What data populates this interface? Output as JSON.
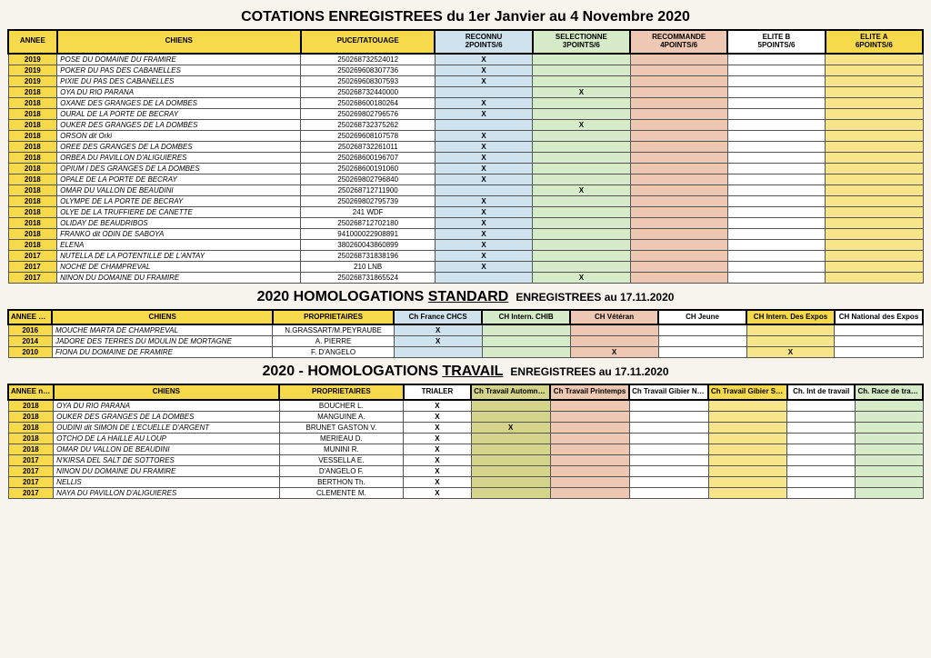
{
  "titles": {
    "t1": "COTATIONS ENREGISTREES du 1er Janvier au 4 Novembre 2020",
    "t2a": "2020 HOMOLOGATIONS ",
    "t2b": "STANDARD",
    "t2c": "ENREGISTREES  au 17.11.2020",
    "t3a": "2020 - HOMOLOGATIONS ",
    "t3b": "TRAVAIL",
    "t3c": "ENREGISTREES  au 17.11.2020"
  },
  "cotation": {
    "headers": [
      "ANNEE",
      "CHIENS",
      "PUCE/TATOUAGE",
      "RECONNU 2POINTS/6",
      "SELECTIONNE 3POINTS/6",
      "RECOMMANDE 4POINTS/6",
      "ELITE B 5POINTS/6",
      "ELITE A 6POINTS/6"
    ],
    "rows": [
      {
        "star": true,
        "y": "2019",
        "d": "POSE DU DOMAINE DU FRAMIRE",
        "p": "250268732524012",
        "m": [
          1,
          0,
          0,
          0,
          0
        ]
      },
      {
        "y": "2019",
        "d": "POKER DU PAS DES CABANELLES",
        "p": "250269608307736",
        "m": [
          1,
          0,
          0,
          0,
          0
        ]
      },
      {
        "y": "2019",
        "d": "PIXIE DU PAS DES CABANELLES",
        "p": "250269608307593",
        "m": [
          1,
          0,
          0,
          0,
          0
        ]
      },
      {
        "y": "2018",
        "d": "OYA DU RIO PARANA",
        "p": "250268732440000",
        "m": [
          0,
          1,
          0,
          0,
          0
        ]
      },
      {
        "y": "2018",
        "d": "OXANE DES GRANGES DE LA DOMBES",
        "p": "250268600180264",
        "m": [
          1,
          0,
          0,
          0,
          0
        ]
      },
      {
        "y": "2018",
        "d": "OURAL DE LA PORTE DE BECRAY",
        "p": "250269802796576",
        "m": [
          1,
          0,
          0,
          0,
          0
        ]
      },
      {
        "y": "2018",
        "d": "OUKER DES GRANGES DE LA DOMBES",
        "p": "250268732375262",
        "m": [
          0,
          1,
          0,
          0,
          0
        ]
      },
      {
        "y": "2018",
        "d": "ORSON dit Orki",
        "p": "250269608107578",
        "m": [
          1,
          0,
          0,
          0,
          0
        ]
      },
      {
        "y": "2018",
        "d": "OREE DES GRANGES DE LA DOMBES",
        "p": "250268732261011",
        "m": [
          1,
          0,
          0,
          0,
          0
        ]
      },
      {
        "y": "2018",
        "d": "ORBEA DU PAVILLON D'ALIGUIERES",
        "p": "250268600196707",
        "m": [
          1,
          0,
          0,
          0,
          0
        ]
      },
      {
        "y": "2018",
        "d": "OPIUM I DES GRANGES DE LA DOMBES",
        "p": "250268600191060",
        "m": [
          1,
          0,
          0,
          0,
          0
        ]
      },
      {
        "y": "2018",
        "d": "OPALE DE LA PORTE DE BECRAY",
        "p": "250269802796840",
        "m": [
          1,
          0,
          0,
          0,
          0
        ]
      },
      {
        "y": "2018",
        "d": "OMAR DU VALLON DE BEAUDINI",
        "p": "250268712711900",
        "m": [
          0,
          1,
          0,
          0,
          0
        ]
      },
      {
        "y": "2018",
        "d": "OLYMPE DE LA PORTE DE BECRAY",
        "p": "250269802795739",
        "m": [
          1,
          0,
          0,
          0,
          0
        ]
      },
      {
        "y": "2018",
        "d": "OLYE DE LA TRUFFIERE DE CANETTE",
        "p": "241 WDF",
        "m": [
          1,
          0,
          0,
          0,
          0
        ]
      },
      {
        "y": "2018",
        "d": "OLIDAY DE BEAUDRIBOS",
        "p": "250268712702180",
        "m": [
          1,
          0,
          0,
          0,
          0
        ]
      },
      {
        "y": "2018",
        "d": "FRANKO dit ODIN DE SABOYA",
        "p": "941000022908891",
        "m": [
          1,
          0,
          0,
          0,
          0
        ]
      },
      {
        "y": "2018",
        "d": "ELENA",
        "p": "380260043860899",
        "m": [
          1,
          0,
          0,
          0,
          0
        ]
      },
      {
        "y": "2017",
        "d": "NUTELLA DE LA POTENTILLE DE L'ANTAY",
        "p": "250268731838196",
        "m": [
          1,
          0,
          0,
          0,
          0
        ]
      },
      {
        "y": "2017",
        "d": "NOCHE DE CHAMPREVAL",
        "p": "210 LNB",
        "m": [
          1,
          0,
          0,
          0,
          0
        ]
      },
      {
        "star": true,
        "y": "2017",
        "d": "NINON DU DOMAINE DU FRAMIRE",
        "p": "250268731865524",
        "m": [
          0,
          1,
          0,
          0,
          0
        ]
      }
    ]
  },
  "standard": {
    "headers": [
      "ANNEE naissance",
      "CHIENS",
      "PROPRIETAIRES",
      "Ch France CHCS",
      "CH Intern. CHIB",
      "CH  Vétéran",
      "CH   Jeune",
      "CH Intern. Des Expos",
      "CH National des Expos"
    ],
    "rows": [
      {
        "y": "2016",
        "d": "MOUCHE MARTA DE CHAMPREVAL",
        "o": "N.GRASSART/M.PEYRAUBE",
        "m": [
          1,
          0,
          0,
          0,
          0,
          0
        ]
      },
      {
        "y": "2014",
        "d": "JADORE DES TERRES DU MOULIN DE MORTAGNE",
        "o": "A. PIERRE",
        "m": [
          1,
          0,
          0,
          0,
          0,
          0
        ]
      },
      {
        "star": true,
        "y": "2010",
        "d": "FIONA DU DOMAINE DE FRAMIRE",
        "o": "F. D'ANGELO",
        "m": [
          0,
          0,
          1,
          0,
          1,
          0
        ]
      }
    ]
  },
  "travail": {
    "headers": [
      "ANNEE naissance",
      "CHIENS",
      "PROPRIETAIRES",
      "TRIALER",
      "Ch Travail Automne/GT",
      "Ch Travail Printemps",
      "Ch Travail Gibier Naturel",
      "Ch Travail Gibier Sauvage",
      "Ch. Int de travail",
      "Ch. Race de travail"
    ],
    "rows": [
      {
        "y": "2018",
        "d": "OYA DU RIO PARANA",
        "o": "BOUCHER L.",
        "m": [
          1,
          0,
          0,
          0,
          0,
          0,
          0
        ]
      },
      {
        "y": "2018",
        "d": "OUKER DES GRANGES DE LA DOMBES",
        "o": "MANGUINE A.",
        "m": [
          1,
          0,
          0,
          0,
          0,
          0,
          0
        ]
      },
      {
        "y": "2018",
        "d": "OUDINI dit SIMON DE L'ECUELLE D'ARGENT",
        "o": "BRUNET GASTON V.",
        "m": [
          1,
          1,
          0,
          0,
          0,
          0,
          0
        ]
      },
      {
        "y": "2018",
        "d": "OTCHO DE LA HAILLE AU LOUP",
        "o": "MERIEAU D.",
        "m": [
          1,
          0,
          0,
          0,
          0,
          0,
          0
        ]
      },
      {
        "y": "2018",
        "d": "OMAR DU VALLON DE BEAUDINI",
        "o": "MUNINI R.",
        "m": [
          1,
          0,
          0,
          0,
          0,
          0,
          0
        ]
      },
      {
        "y": "2017",
        "d": "N'KIRSA DEL SALT DE SOTTORES",
        "o": "VESSELLA E.",
        "m": [
          1,
          0,
          0,
          0,
          0,
          0,
          0
        ]
      },
      {
        "star": true,
        "y": "2017",
        "d": "NINON DU DOMAINE DU FRAMIRE",
        "o": "D'ANGELO F.",
        "m": [
          1,
          0,
          0,
          0,
          0,
          0,
          0
        ]
      },
      {
        "y": "2017",
        "d": "NELLIS",
        "o": "BERTHON Th.",
        "m": [
          1,
          0,
          0,
          0,
          0,
          0,
          0
        ]
      },
      {
        "y": "2017",
        "d": "NAYA DU PAVILLON D'ALIGUIERES",
        "o": "CLEMENTE M.",
        "m": [
          1,
          0,
          0,
          0,
          0,
          0,
          0
        ]
      }
    ]
  }
}
